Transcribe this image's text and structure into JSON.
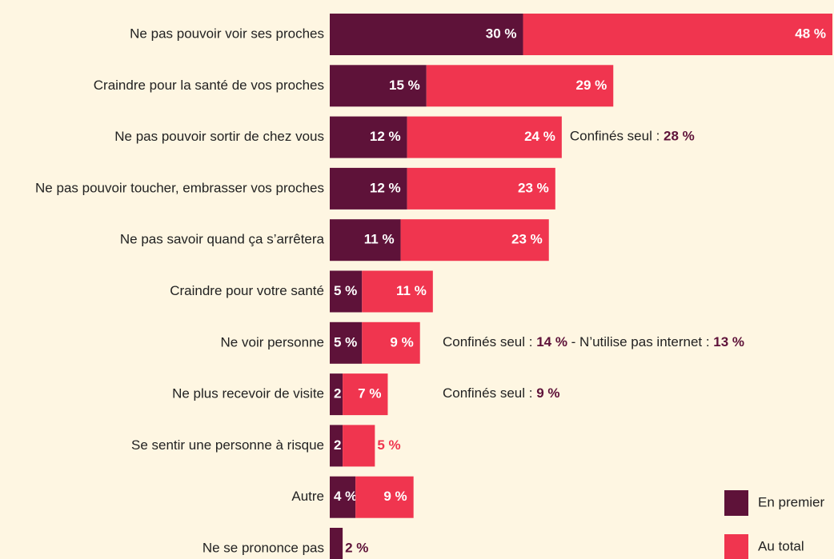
{
  "chart_data": {
    "type": "stacked-bar-horizontal",
    "categories": [
      "Ne pas pouvoir voir ses proches",
      "Craindre pour la santé de vos proches",
      "Ne pas pouvoir sortir de chez vous",
      "Ne pas pouvoir toucher, embrasser vos proches",
      "Ne pas savoir quand ça s’arrêtera",
      "Craindre pour votre santé",
      "Ne voir personne",
      "Ne plus recevoir de visite",
      "Se sentir une personne à risque",
      "Autre",
      "Ne se prononce pas"
    ],
    "series": [
      {
        "name": "En premier",
        "color": "#5e1239",
        "values": [
          30,
          15,
          12,
          12,
          11,
          5,
          5,
          2,
          2,
          4,
          2
        ],
        "value_labels": [
          "30 %",
          "15 %",
          "12 %",
          "12 %",
          "11 %",
          "5 %",
          "5 %",
          "2 %",
          "2 %",
          "4 %",
          "2 %"
        ]
      },
      {
        "name": "Au total",
        "color": "#f0354f",
        "values": [
          48,
          29,
          24,
          23,
          23,
          11,
          9,
          7,
          5,
          9,
          null
        ],
        "value_labels": [
          "48 %",
          "29 %",
          "24 %",
          "23 %",
          "23 %",
          "11 %",
          "9 %",
          "7 %",
          "5 %",
          "9 %",
          null
        ]
      }
    ],
    "annotations": [
      null,
      null,
      [
        "Confinés seul : ",
        "28 %"
      ],
      null,
      null,
      null,
      [
        "Confinés seul : ",
        "14 %",
        " - N’utilise pas internet : ",
        "13 %"
      ],
      [
        "Confinés seul : ",
        "9 %"
      ],
      null,
      null,
      null
    ],
    "legend": "bottom-right"
  }
}
